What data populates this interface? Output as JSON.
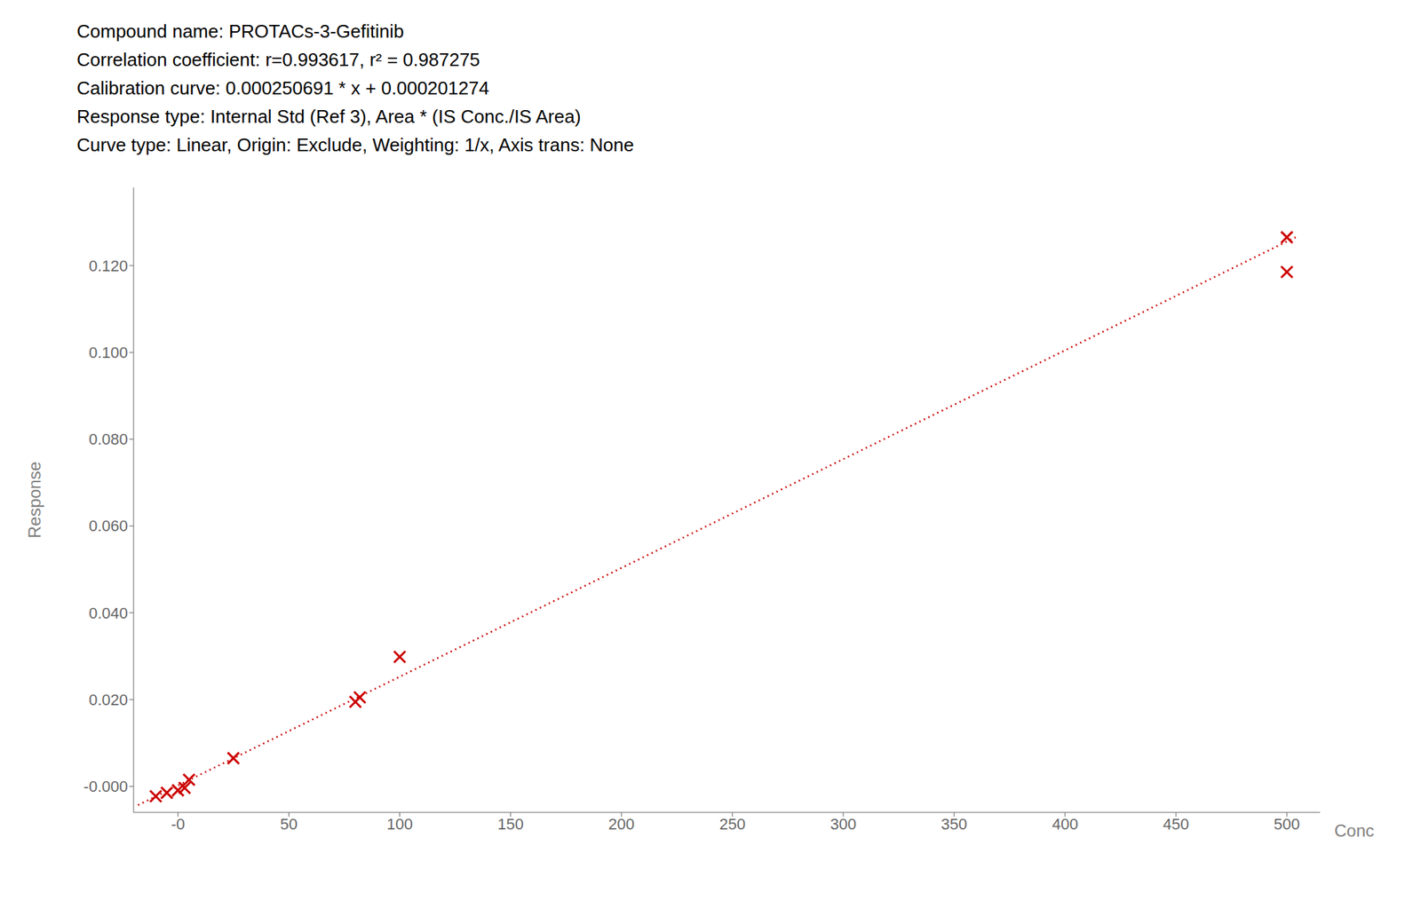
{
  "chart_data": {
    "type": "scatter",
    "title": "Compound name: PROTACs-3-Gefitinib",
    "annotations": [
      "Correlation coefficient: r=0.993617, r² = 0.987275",
      "Calibration curve: 0.000250691 * x + 0.000201274",
      "Response type: Internal Std (Ref 3), Area * (IS Conc./IS Area)",
      "Curve type: Linear, Origin: Exclude, Weighting: 1/x, Axis trans: None"
    ],
    "xlabel": "Conc",
    "ylabel": "Response",
    "series": [
      {
        "type": "line",
        "color": "#cc0000",
        "line_style": "dotted",
        "x": [
          -18,
          505
        ],
        "values": [
          -0.004311164,
          0.126800229
        ]
      },
      {
        "type": "scatter",
        "color": "#cc0000",
        "marker": "x",
        "x": [
          -10,
          -5,
          0,
          3,
          5,
          25,
          80,
          82,
          100,
          500,
          500
        ],
        "values": [
          -0.00228,
          -0.00148,
          -0.0009,
          -0.00035,
          0.00152,
          0.00649,
          0.01948,
          0.0205,
          0.02983,
          0.11852,
          0.12653
        ]
      }
    ],
    "xlim": [
      -20,
      515
    ],
    "ylim": [
      -0.006,
      0.138
    ],
    "xticks": [
      {
        "value": 0,
        "label": "-0"
      },
      50,
      100,
      150,
      200,
      250,
      300,
      350,
      400,
      450,
      500
    ],
    "yticks": [
      {
        "value": 0.0,
        "label": "-0.000"
      },
      {
        "value": 0.02,
        "label": "0.020"
      },
      {
        "value": 0.04,
        "label": "0.040"
      },
      {
        "value": 0.06,
        "label": "0.060"
      },
      {
        "value": 0.08,
        "label": "0.080"
      },
      {
        "value": 0.1,
        "label": "0.100"
      },
      {
        "value": 0.12,
        "label": "0.120"
      }
    ],
    "grid": false
  }
}
